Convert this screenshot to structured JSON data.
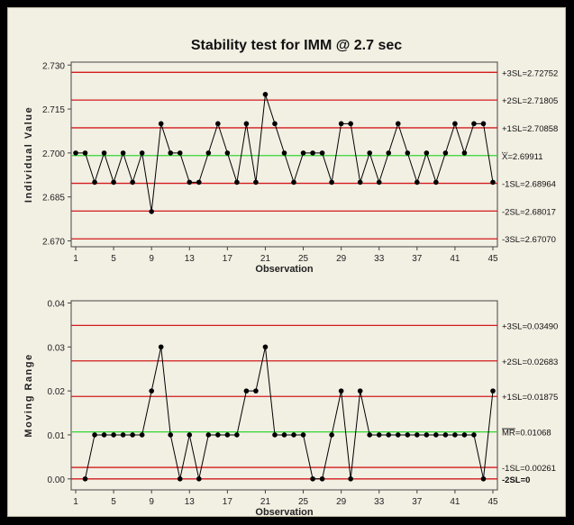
{
  "chart_data": {
    "title": "Stability test for IMM @ 2.7 sec",
    "colors": {
      "data": "#000000",
      "limit": "#d21c1c",
      "center": "#33d633"
    },
    "charts": [
      {
        "type": "line",
        "ylabel": "Individual Value",
        "xlabel": "Observation",
        "xlim": [
          1,
          45
        ],
        "ylim": [
          2.668,
          2.731
        ],
        "xticks": [
          "1",
          "5",
          "9",
          "13",
          "17",
          "21",
          "25",
          "29",
          "33",
          "37",
          "41",
          "45"
        ],
        "yticks": [
          "2.670",
          "2.685",
          "2.700",
          "2.715",
          "2.730"
        ],
        "values": [
          2.7,
          2.7,
          2.69,
          2.7,
          2.69,
          2.7,
          2.69,
          2.7,
          2.68,
          2.71,
          2.7,
          2.7,
          2.69,
          2.69,
          2.7,
          2.71,
          2.7,
          2.69,
          2.71,
          2.69,
          2.72,
          2.71,
          2.7,
          2.69,
          2.7,
          2.7,
          2.7,
          2.69,
          2.71,
          2.71,
          2.69,
          2.7,
          2.69,
          2.7,
          2.71,
          2.7,
          2.69,
          2.7,
          2.69,
          2.7,
          2.71,
          2.7,
          2.71,
          2.71,
          2.69
        ],
        "limits": [
          {
            "label": "+3SL=2.72752",
            "value": 2.72752,
            "kind": "limit"
          },
          {
            "label": "+2SL=2.71805",
            "value": 2.71805,
            "kind": "limit"
          },
          {
            "label": "+1SL=2.70858",
            "value": 2.70858,
            "kind": "limit"
          },
          {
            "label": "=2.69911",
            "value": 2.69911,
            "kind": "center",
            "label_prefix": "X̄"
          },
          {
            "label": "-1SL=2.68964",
            "value": 2.68964,
            "kind": "limit"
          },
          {
            "label": "-2SL=2.68017",
            "value": 2.68017,
            "kind": "limit"
          },
          {
            "label": "-3SL=2.67070",
            "value": 2.6707,
            "kind": "limit"
          }
        ]
      },
      {
        "type": "line",
        "ylabel": "Moving Range",
        "xlabel": "Observation",
        "xlim": [
          1,
          45
        ],
        "ylim": [
          -0.0025,
          0.0405
        ],
        "xticks": [
          "1",
          "5",
          "9",
          "13",
          "17",
          "21",
          "25",
          "29",
          "33",
          "37",
          "41",
          "45"
        ],
        "yticks": [
          "0.00",
          "0.01",
          "0.02",
          "0.03",
          "0.04"
        ],
        "x": [
          2,
          3,
          4,
          5,
          6,
          7,
          8,
          9,
          10,
          11,
          12,
          13,
          14,
          15,
          16,
          17,
          18,
          19,
          20,
          21,
          22,
          23,
          24,
          25,
          26,
          27,
          28,
          29,
          30,
          31,
          32,
          33,
          34,
          35,
          36,
          37,
          38,
          39,
          40,
          41,
          42,
          43,
          44,
          45
        ],
        "values": [
          0.0,
          0.01,
          0.01,
          0.01,
          0.01,
          0.01,
          0.01,
          0.02,
          0.03,
          0.01,
          0.0,
          0.01,
          0.0,
          0.01,
          0.01,
          0.01,
          0.01,
          0.02,
          0.02,
          0.03,
          0.01,
          0.01,
          0.01,
          0.01,
          0.0,
          0.0,
          0.01,
          0.02,
          0.0,
          0.02,
          0.01,
          0.01,
          0.01,
          0.01,
          0.01,
          0.01,
          0.01,
          0.01,
          0.01,
          0.01,
          0.01,
          0.01,
          0.0,
          0.02
        ],
        "limits": [
          {
            "label": "+3SL=0.03490",
            "value": 0.0349,
            "kind": "limit"
          },
          {
            "label": "+2SL=0.02683",
            "value": 0.02683,
            "kind": "limit"
          },
          {
            "label": "+1SL=0.01875",
            "value": 0.01875,
            "kind": "limit"
          },
          {
            "label": "=0.01068",
            "value": 0.01068,
            "kind": "center",
            "label_prefix": "MR"
          },
          {
            "label": "-1SL=0.00261",
            "value": 0.00261,
            "kind": "limit"
          },
          {
            "label": "-2SL=0",
            "value": 0,
            "kind": "limit",
            "bold": true
          }
        ]
      }
    ]
  }
}
